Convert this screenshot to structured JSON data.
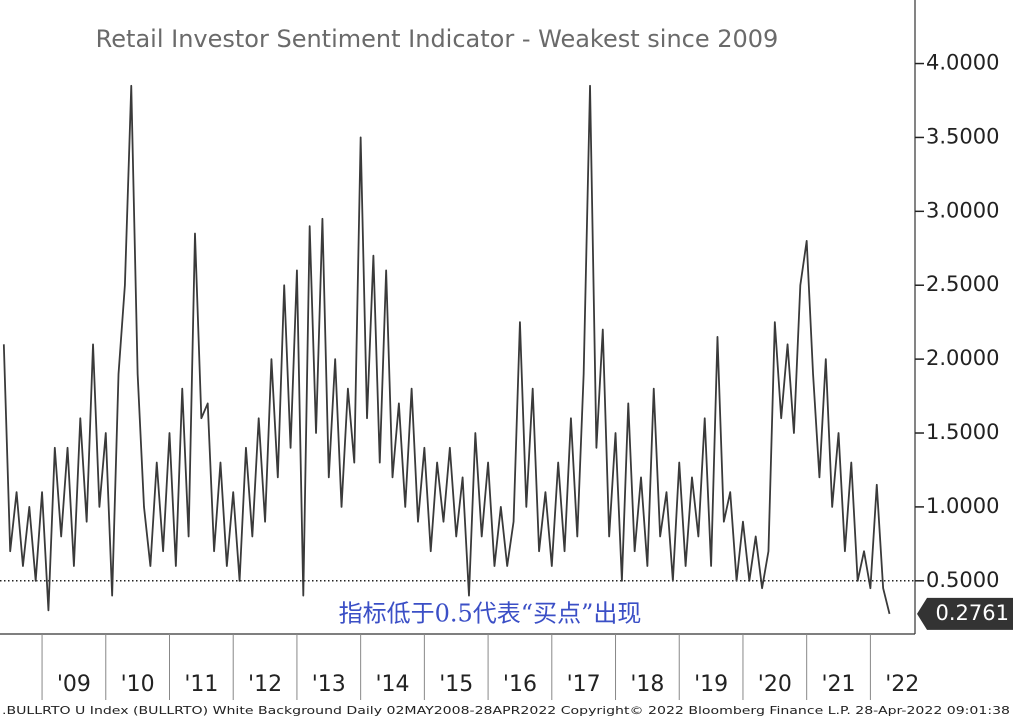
{
  "chart_data": {
    "type": "line",
    "title": "Retail Investor Sentiment Indicator - Weakest since 2009",
    "annotation": "指标低于0.5代表“买点”出现",
    "footer": ".BULLRTO U Index (BULLRTO) White Background  Daily 02MAY2008-28APR2022 Copyright© 2022 Bloomberg Finance L.P. 28-Apr-2022 09:01:38",
    "color": "#3a3a3a",
    "reference_line": 0.5,
    "xlim": [
      2008.34,
      2022.7
    ],
    "ylim": [
      0.14,
      4.43
    ],
    "xticks": [
      {
        "value": 2009,
        "label": "'09"
      },
      {
        "value": 2010,
        "label": "'10"
      },
      {
        "value": 2011,
        "label": "'11"
      },
      {
        "value": 2012,
        "label": "'12"
      },
      {
        "value": 2013,
        "label": "'13"
      },
      {
        "value": 2014,
        "label": "'14"
      },
      {
        "value": 2015,
        "label": "'15"
      },
      {
        "value": 2016,
        "label": "'16"
      },
      {
        "value": 2017,
        "label": "'17"
      },
      {
        "value": 2018,
        "label": "'18"
      },
      {
        "value": 2019,
        "label": "'19"
      },
      {
        "value": 2020,
        "label": "'20"
      },
      {
        "value": 2021,
        "label": "'21"
      },
      {
        "value": 2022,
        "label": "'22"
      }
    ],
    "yticks": [
      {
        "value": 0.5,
        "label": "0.5000"
      },
      {
        "value": 1.0,
        "label": "1.0000"
      },
      {
        "value": 1.5,
        "label": "1.5000"
      },
      {
        "value": 2.0,
        "label": "2.0000"
      },
      {
        "value": 2.5,
        "label": "2.5000"
      },
      {
        "value": 3.0,
        "label": "3.0000"
      },
      {
        "value": 3.5,
        "label": "3.5000"
      },
      {
        "value": 4.0,
        "label": "4.0000"
      }
    ],
    "x": [
      2008.4,
      2008.5,
      2008.6,
      2008.7,
      2008.8,
      2008.9,
      2009.0,
      2009.1,
      2009.2,
      2009.3,
      2009.4,
      2009.5,
      2009.6,
      2009.7,
      2009.8,
      2009.9,
      2010.0,
      2010.1,
      2010.2,
      2010.3,
      2010.4,
      2010.5,
      2010.6,
      2010.7,
      2010.8,
      2010.9,
      2011.0,
      2011.1,
      2011.2,
      2011.3,
      2011.4,
      2011.5,
      2011.6,
      2011.7,
      2011.8,
      2011.9,
      2012.0,
      2012.1,
      2012.2,
      2012.3,
      2012.4,
      2012.5,
      2012.6,
      2012.7,
      2012.8,
      2012.9,
      2013.0,
      2013.1,
      2013.2,
      2013.3,
      2013.4,
      2013.5,
      2013.6,
      2013.7,
      2013.8,
      2013.9,
      2014.0,
      2014.1,
      2014.2,
      2014.3,
      2014.4,
      2014.5,
      2014.6,
      2014.7,
      2014.8,
      2014.9,
      2015.0,
      2015.1,
      2015.2,
      2015.3,
      2015.4,
      2015.5,
      2015.6,
      2015.7,
      2015.8,
      2015.9,
      2016.0,
      2016.1,
      2016.2,
      2016.3,
      2016.4,
      2016.5,
      2016.6,
      2016.7,
      2016.8,
      2016.9,
      2017.0,
      2017.1,
      2017.2,
      2017.3,
      2017.4,
      2017.5,
      2017.6,
      2017.7,
      2017.8,
      2017.9,
      2018.0,
      2018.1,
      2018.2,
      2018.3,
      2018.4,
      2018.5,
      2018.6,
      2018.7,
      2018.8,
      2018.9,
      2019.0,
      2019.1,
      2019.2,
      2019.3,
      2019.4,
      2019.5,
      2019.6,
      2019.7,
      2019.8,
      2019.9,
      2020.0,
      2020.1,
      2020.2,
      2020.3,
      2020.4,
      2020.5,
      2020.6,
      2020.7,
      2020.8,
      2020.9,
      2021.0,
      2021.1,
      2021.2,
      2021.3,
      2021.4,
      2021.5,
      2021.6,
      2021.7,
      2021.8,
      2021.9,
      2022.0,
      2022.1,
      2022.2,
      2022.3
    ],
    "values": [
      2.1,
      0.7,
      1.1,
      0.6,
      1.0,
      0.5,
      1.1,
      0.3,
      1.4,
      0.8,
      1.4,
      0.6,
      1.6,
      0.9,
      2.1,
      1.0,
      1.5,
      0.4,
      1.9,
      2.5,
      3.85,
      1.9,
      1.0,
      0.6,
      1.3,
      0.7,
      1.5,
      0.6,
      1.8,
      0.8,
      2.85,
      1.6,
      1.7,
      0.7,
      1.3,
      0.6,
      1.1,
      0.5,
      1.4,
      0.8,
      1.6,
      0.9,
      2.0,
      1.2,
      2.5,
      1.4,
      2.6,
      0.4,
      2.9,
      1.5,
      2.95,
      1.2,
      2.0,
      1.0,
      1.8,
      1.3,
      3.5,
      1.6,
      2.7,
      1.3,
      2.6,
      1.2,
      1.7,
      1.0,
      1.8,
      0.9,
      1.4,
      0.7,
      1.3,
      0.9,
      1.4,
      0.8,
      1.2,
      0.4,
      1.5,
      0.8,
      1.3,
      0.6,
      1.0,
      0.6,
      0.9,
      2.25,
      1.0,
      1.8,
      0.7,
      1.1,
      0.6,
      1.3,
      0.7,
      1.6,
      0.8,
      1.9,
      3.85,
      1.4,
      2.2,
      0.8,
      1.5,
      0.5,
      1.7,
      0.7,
      1.2,
      0.6,
      1.8,
      0.8,
      1.1,
      0.5,
      1.3,
      0.6,
      1.2,
      0.8,
      1.6,
      0.6,
      2.15,
      0.9,
      1.1,
      0.5,
      0.9,
      0.5,
      0.8,
      0.45,
      0.7,
      2.25,
      1.6,
      2.1,
      1.5,
      2.5,
      2.8,
      1.9,
      1.2,
      2.0,
      1.0,
      1.5,
      0.7,
      1.3,
      0.5,
      0.7,
      0.45,
      1.15,
      0.45,
      0.2761
    ]
  }
}
